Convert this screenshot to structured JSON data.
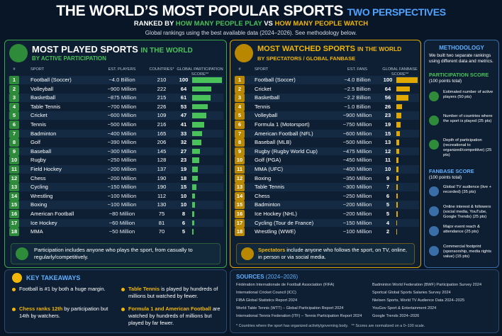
{
  "header": {
    "title": "THE WORLD’S MOST POPULAR SPORTS",
    "title_accent": "TWO PERSPECTIVES",
    "subtitle": [
      "RANKED BY",
      "HOW MANY PEOPLE PLAY",
      "VS",
      "HOW MANY PEOPLE WATCH"
    ],
    "note": "Global rankings using the best available data (2024–2026). See methodology below."
  },
  "played": {
    "title": "MOST PLAYED SPORTS",
    "title_suffix": "IN THE WORLD",
    "subtitle": "BY ACTIVE PARTICIPATION",
    "columns": [
      "#",
      "SPORT",
      "EST. PLAYERS",
      "COUNTRIES*",
      "GLOBAL PARTICIPATION SCORE**"
    ],
    "rows": [
      [
        1,
        "Football (Soccer)",
        "~4.0 Billion",
        210,
        100
      ],
      [
        2,
        "Volleyball",
        "~900 Million",
        222,
        64
      ],
      [
        3,
        "Basketball",
        "~875 Million",
        215,
        61
      ],
      [
        4,
        "Table Tennis",
        "~700 Million",
        226,
        53
      ],
      [
        5,
        "Cricket",
        "~600 Million",
        109,
        47
      ],
      [
        6,
        "Tennis",
        "~500 Million",
        216,
        41
      ],
      [
        7,
        "Badminton",
        "~400 Million",
        165,
        33
      ],
      [
        8,
        "Golf",
        "~390 Million",
        206,
        32
      ],
      [
        9,
        "Baseball",
        "~300 Million",
        145,
        27
      ],
      [
        10,
        "Rugby",
        "~250 Million",
        128,
        23
      ],
      [
        11,
        "Field Hockey",
        "~200 Million",
        137,
        19
      ],
      [
        12,
        "Chess",
        "~200 Million",
        190,
        18
      ],
      [
        13,
        "Cycling",
        "~150 Million",
        190,
        15
      ],
      [
        14,
        "Wrestling",
        "~100 Million",
        112,
        10
      ],
      [
        15,
        "Boxing",
        "~100 Million",
        130,
        10
      ],
      [
        16,
        "American Football",
        "~80 Million",
        75,
        8
      ],
      [
        17,
        "Ice Hockey",
        "~60 Million",
        81,
        6
      ],
      [
        18,
        "MMA",
        "~50 Million",
        70,
        5
      ]
    ],
    "note": "Participation includes anyone who plays the sport, from casually to regularly/competitively."
  },
  "watched": {
    "title": "MOST WATCHED SPORTS",
    "title_suffix": "IN THE WORLD",
    "subtitle": "BY SPECTATORS / GLOBAL FANBASE",
    "columns": [
      "#",
      "SPORT",
      "EST. FANS",
      "GLOBAL FANBASE SCORE**"
    ],
    "rows": [
      [
        1,
        "Football (Soccer)",
        "~4.0 Billion",
        100
      ],
      [
        2,
        "Cricket",
        "~2.5 Billion",
        64
      ],
      [
        3,
        "Basketball",
        "~2.2 Billion",
        56
      ],
      [
        4,
        "Tennis",
        "~1.0 Billion",
        26
      ],
      [
        5,
        "Volleyball",
        "~900 Million",
        23
      ],
      [
        6,
        "Formula 1 (Motorsport)",
        "~750 Million",
        19
      ],
      [
        7,
        "American Football (NFL)",
        "~600 Million",
        15
      ],
      [
        8,
        "Baseball (MLB)",
        "~500 Million",
        13
      ],
      [
        9,
        "Rugby (Rugby World Cup)",
        "~475 Million",
        12
      ],
      [
        10,
        "Golf (PGA)",
        "~450 Million",
        11
      ],
      [
        11,
        "MMA (UFC)",
        "~400 Million",
        10
      ],
      [
        12,
        "Boxing",
        "~350 Million",
        9
      ],
      [
        13,
        "Table Tennis",
        "~300 Million",
        7
      ],
      [
        14,
        "Chess",
        "~250 Million",
        6
      ],
      [
        15,
        "Badminton",
        "~200 Million",
        5
      ],
      [
        16,
        "Ice Hockey (NHL)",
        "~200 Million",
        5
      ],
      [
        17,
        "Cycling (Tour de France)",
        "~150 Million",
        4
      ],
      [
        18,
        "Wrestling (WWE)",
        "~100 Million",
        2
      ]
    ],
    "note_highlight": "Spectators",
    "note": " include anyone who follows the sport, on TV, online, in person or via social media."
  },
  "methodology": {
    "title": "METHODOLOGY",
    "intro": "We built two separate rankings using different data and metrics.",
    "participation": {
      "title": "PARTICIPATION SCORE",
      "subtitle": "(100 points total)",
      "items": [
        "Estimated number of active players (50 pts)",
        "Number of countries where the sport is played (25 pts)",
        "Depth of participation (recreational to organized/competitive) (25 pts)"
      ]
    },
    "fanbase": {
      "title": "FANBASE SCORE",
      "subtitle": "(100 points total)",
      "items": [
        "Global TV audience (live + recorded) (35 pts)",
        "Online interest & followers (social media, YouTube, Google Trends) (25 pts)",
        "Major event reach & attendance (25 pts)",
        "Commercial footprint (sponsorship, media rights value) (15 pts)"
      ]
    }
  },
  "takeaways": {
    "title": "KEY TAKEAWAYS",
    "items": [
      {
        "text": "Football is #1 by both a huge margin."
      },
      {
        "highlight": "Chess ranks 12th",
        "text": " by participation but 14th by watchers."
      },
      {
        "highlight": "Table Tennis",
        "text": " is played by hundreds of millions but watched by fewer."
      },
      {
        "highlight": "Formula 1 and American Football",
        "text": " are watched by hundreds of millions but played by far fewer."
      }
    ]
  },
  "sources": {
    "title": "SOURCES",
    "title_suffix": "(2024–2026)",
    "left": [
      "Fédération Internationale de Football Association (FIFA)",
      "International Cricket Council (ICC)",
      "FIBA Global Statistics Report 2024",
      "World Table Tennis (WTT) – Global Participation Report 2024",
      "International Tennis Federation (ITF) – Tennis Participation Report 2024"
    ],
    "right": [
      "Badminton World Federation (BWF) Participation Survey 2024",
      "Sportcal Global Sports Salaries Survey 2024",
      "Nielsen Sports, World TV Audience Data 2024–2025",
      "YouGov Sport & Entertainment 2024",
      "Google Trends 2024–2026"
    ],
    "footnotes": [
      "* Countries where the sport has organized activity/governing body.",
      "** Scores are normalized on a 0–100 scale."
    ]
  }
}
